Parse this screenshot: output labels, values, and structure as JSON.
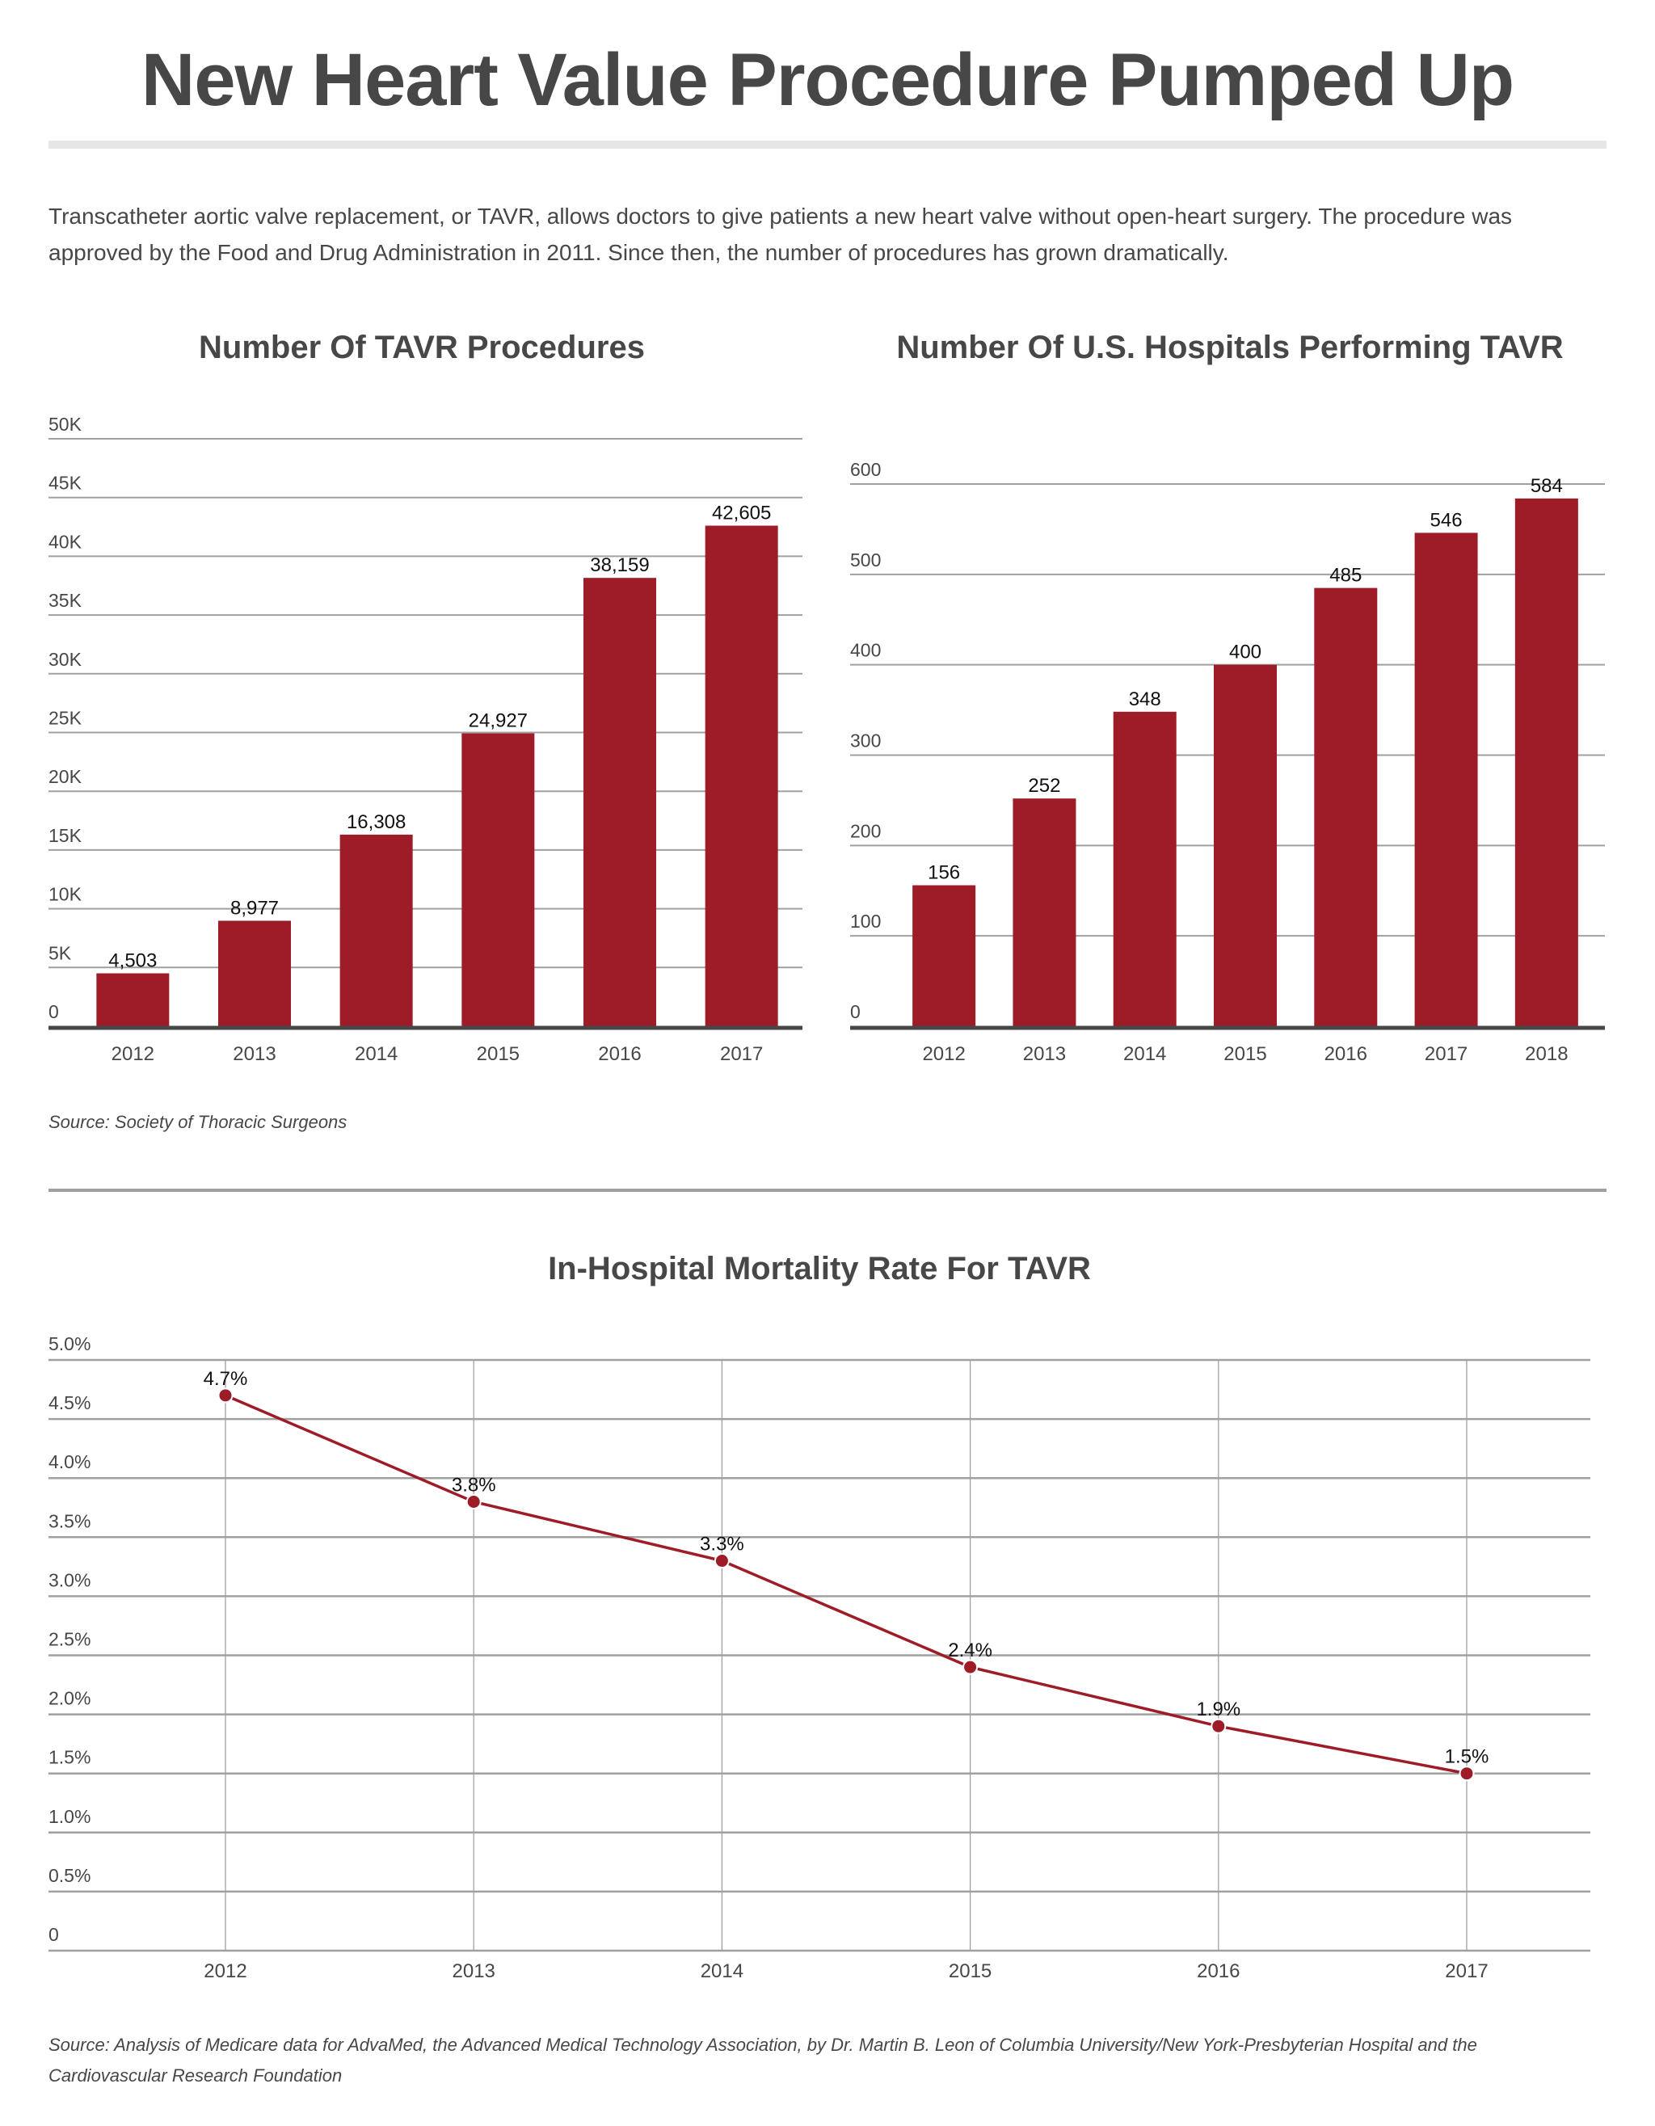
{
  "header": {
    "title": "New Heart Value Procedure Pumped Up",
    "intro": "Transcatheter aortic valve replacement, or TAVR, allows doctors to give patients a new heart valve without open-heart surgery. The procedure was approved by the Food and Drug Administration in 2011. Since then, the number of procedures has grown dramatically."
  },
  "sources": {
    "top": "Source: Society of Thoracic Surgeons",
    "bottom_line1": "Source: Analysis of Medicare data for AdvaMed, the Advanced Medical Technology Association, by Dr. Martin B. Leon of Columbia University/New York-Presbyterian Hospital and the",
    "bottom_line2": "Cardiovascular Research Foundation"
  },
  "colors": {
    "bar": "#9d1c28",
    "line": "#9d1c28",
    "gridline": "#a0a0a0",
    "axis": "#474747",
    "text": "#474747"
  },
  "chart_data": [
    {
      "type": "bar",
      "title": "Number Of TAVR Procedures",
      "categories": [
        "2012",
        "2013",
        "2014",
        "2015",
        "2016",
        "2017"
      ],
      "values": [
        4503,
        8977,
        16308,
        24927,
        38159,
        42605
      ],
      "data_labels": [
        "4,503",
        "8,977",
        "16,308",
        "24,927",
        "38,159",
        "42,605"
      ],
      "ylim": [
        0,
        50000
      ],
      "yticks": [
        0,
        5000,
        10000,
        15000,
        20000,
        25000,
        30000,
        35000,
        40000,
        45000,
        50000
      ],
      "ytick_labels": [
        "0",
        "5K",
        "10K",
        "15K",
        "20K",
        "25K",
        "30K",
        "35K",
        "40K",
        "45K",
        "50K"
      ],
      "xlabel": "",
      "ylabel": "",
      "grid": true,
      "legend": "none"
    },
    {
      "type": "bar",
      "title": "Number Of U.S. Hospitals Performing TAVR",
      "categories": [
        "2012",
        "2013",
        "2014",
        "2015",
        "2016",
        "2017",
        "2018"
      ],
      "values": [
        156,
        252,
        348,
        400,
        485,
        546,
        584
      ],
      "data_labels": [
        "156",
        "252",
        "348",
        "400",
        "485",
        "546",
        "584"
      ],
      "ylim": [
        0,
        600
      ],
      "yticks": [
        0,
        100,
        200,
        300,
        400,
        500,
        600
      ],
      "ytick_labels": [
        "0",
        "100",
        "200",
        "300",
        "400",
        "500",
        "600"
      ],
      "xlabel": "",
      "ylabel": "",
      "grid": true,
      "legend": "none"
    },
    {
      "type": "line",
      "title": "In-Hospital Mortality Rate For TAVR",
      "categories": [
        "2012",
        "2013",
        "2014",
        "2015",
        "2016",
        "2017"
      ],
      "values": [
        4.7,
        3.8,
        3.3,
        2.4,
        1.9,
        1.5
      ],
      "data_labels": [
        "4.7%",
        "3.8%",
        "3.3%",
        "2.4%",
        "1.9%",
        "1.5%"
      ],
      "ylim": [
        0,
        5.0
      ],
      "yticks": [
        0,
        0.5,
        1.0,
        1.5,
        2.0,
        2.5,
        3.0,
        3.5,
        4.0,
        4.5,
        5.0
      ],
      "ytick_labels": [
        "0",
        "0.5%",
        "1.0%",
        "1.5%",
        "2.0%",
        "2.5%",
        "3.0%",
        "3.5%",
        "4.0%",
        "4.5%",
        "5.0%"
      ],
      "xlabel": "",
      "ylabel": "",
      "grid": true,
      "legend": "none"
    }
  ]
}
